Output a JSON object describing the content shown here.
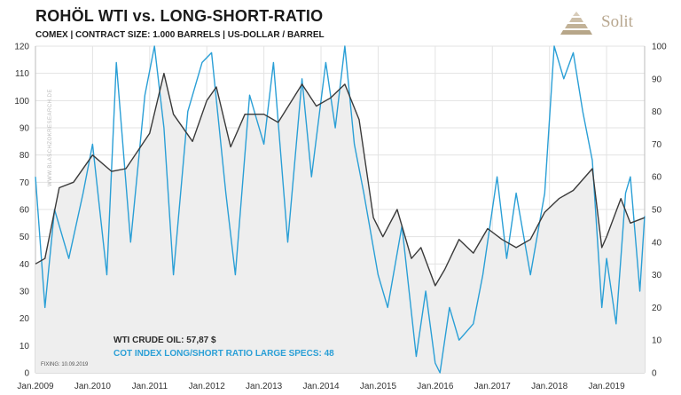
{
  "header": {
    "title": "ROHÖL WTI vs. LONG-SHORT-RATIO",
    "subtitle": "COMEX | CONTRACT SIZE: 1.000 BARRELS | US-DOLLAR / BARREL"
  },
  "logo": {
    "text": "Solit"
  },
  "watermark": "WWW.BLASCHZOKRESEARCH.DE",
  "chart_data": {
    "type": "line",
    "title": "ROHÖL WTI vs. LONG-SHORT-RATIO",
    "grid": true,
    "x_range": [
      "2009-01",
      "2019-09"
    ],
    "x_ticks": [
      "Jan.2009",
      "Jan.2010",
      "Jan.2011",
      "Jan.2012",
      "Jan.2013",
      "Jan.2014",
      "Jan.2015",
      "Jan.2016",
      "Jan.2017",
      "Jan.2018",
      "Jan.2019"
    ],
    "y_left": {
      "lim": [
        0,
        120
      ],
      "ticks": [
        0,
        10,
        20,
        30,
        40,
        50,
        60,
        70,
        80,
        90,
        100,
        110,
        120
      ]
    },
    "y_right": {
      "lim": [
        0,
        100
      ],
      "ticks": [
        0,
        10,
        20,
        30,
        40,
        50,
        60,
        70,
        80,
        90,
        100
      ]
    },
    "series": [
      {
        "name": "WTI CRUDE OIL",
        "axis": "left",
        "color": "#3a3a3a",
        "fill": "#eeeeee",
        "x": [
          "2009-01",
          "2009-03",
          "2009-06",
          "2009-09",
          "2010-01",
          "2010-05",
          "2010-08",
          "2011-01",
          "2011-04",
          "2011-06",
          "2011-10",
          "2012-01",
          "2012-03",
          "2012-06",
          "2012-09",
          "2013-01",
          "2013-04",
          "2013-09",
          "2013-12",
          "2014-03",
          "2014-06",
          "2014-09",
          "2014-12",
          "2015-02",
          "2015-05",
          "2015-08",
          "2015-10",
          "2016-01",
          "2016-03",
          "2016-06",
          "2016-09",
          "2016-12",
          "2017-03",
          "2017-06",
          "2017-09",
          "2017-12",
          "2018-03",
          "2018-06",
          "2018-10",
          "2018-12",
          "2019-01",
          "2019-04",
          "2019-06",
          "2019-09"
        ],
        "y": [
          40,
          42,
          68,
          70,
          80,
          74,
          75,
          88,
          110,
          95,
          85,
          100,
          105,
          83,
          95,
          95,
          92,
          106,
          98,
          101,
          106,
          93,
          57,
          50,
          60,
          42,
          46,
          32,
          38,
          49,
          44,
          53,
          49,
          46,
          49,
          59,
          64,
          67,
          75,
          46,
          50,
          64,
          55,
          57
        ]
      },
      {
        "name": "COT INDEX LONG/SHORT RATIO LARGE SPECS",
        "axis": "right",
        "color": "#2a9fd6",
        "x": [
          "2009-01",
          "2009-03",
          "2009-05",
          "2009-08",
          "2009-11",
          "2010-01",
          "2010-04",
          "2010-06",
          "2010-09",
          "2010-12",
          "2011-02",
          "2011-04",
          "2011-06",
          "2011-09",
          "2011-12",
          "2012-02",
          "2012-05",
          "2012-07",
          "2012-10",
          "2013-01",
          "2013-03",
          "2013-06",
          "2013-09",
          "2013-11",
          "2014-02",
          "2014-04",
          "2014-06",
          "2014-08",
          "2014-10",
          "2015-01",
          "2015-03",
          "2015-06",
          "2015-09",
          "2015-11",
          "2016-01",
          "2016-02",
          "2016-04",
          "2016-06",
          "2016-09",
          "2016-11",
          "2017-02",
          "2017-04",
          "2017-06",
          "2017-09",
          "2017-12",
          "2018-02",
          "2018-04",
          "2018-06",
          "2018-08",
          "2018-10",
          "2018-12",
          "2019-01",
          "2019-03",
          "2019-05",
          "2019-06",
          "2019-08",
          "2019-09"
        ],
        "y": [
          60,
          20,
          50,
          35,
          55,
          70,
          30,
          95,
          40,
          85,
          100,
          75,
          30,
          80,
          95,
          98,
          55,
          30,
          85,
          70,
          95,
          40,
          90,
          60,
          95,
          75,
          100,
          70,
          55,
          30,
          20,
          45,
          5,
          25,
          3,
          0,
          20,
          10,
          15,
          30,
          60,
          35,
          55,
          30,
          55,
          100,
          90,
          98,
          80,
          65,
          20,
          35,
          15,
          55,
          60,
          25,
          48
        ]
      }
    ]
  },
  "legend": {
    "wti_label": "WTI CRUDE OIL: 57,87 $",
    "cot_label": "COT INDEX LONG/SHORT RATIO LARGE SPECS: 48",
    "wti_color": "#2b2b2b",
    "cot_color": "#2a9fd6"
  },
  "fixing": "FIXING: 10.09.2019"
}
